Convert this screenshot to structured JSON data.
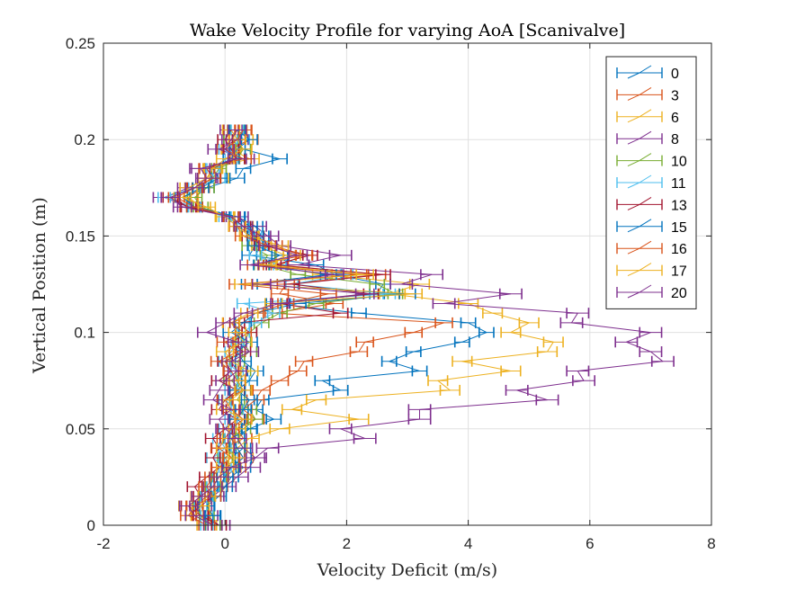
{
  "chart_data": {
    "type": "line",
    "title": "Wake Velocity Profile for varying AoA [Scanivalve]",
    "xlabel": "Velocity Deficit (m/s)",
    "ylabel": "Vertical Position (m)",
    "xlim": [
      -2,
      8
    ],
    "ylim": [
      0,
      0.25
    ],
    "xticks": [
      "-2",
      "0",
      "2",
      "4",
      "6",
      "8"
    ],
    "yticks": [
      "0",
      "0.05",
      "0.1",
      "0.15",
      "0.2",
      "0.25"
    ],
    "grid": true,
    "legend_position": "top-right",
    "error_bars": "horizontal",
    "y": [
      0.205,
      0.2,
      0.195,
      0.19,
      0.185,
      0.18,
      0.175,
      0.17,
      0.165,
      0.16,
      0.155,
      0.15,
      0.145,
      0.14,
      0.135,
      0.13,
      0.125,
      0.12,
      0.115,
      0.11,
      0.105,
      0.1,
      0.095,
      0.09,
      0.085,
      0.08,
      0.075,
      0.07,
      0.065,
      0.06,
      0.055,
      0.05,
      0.045,
      0.04,
      0.035,
      0.03,
      0.025,
      0.02,
      0.015,
      0.01,
      0.005,
      0.0
    ],
    "series": [
      {
        "name": "0",
        "color": "#0072BD",
        "err": 0.12,
        "x": [
          0.2,
          0.1,
          0.3,
          0.9,
          0.3,
          0.2,
          -0.3,
          -0.7,
          -0.5,
          0.2,
          0.5,
          0.6,
          0.5,
          0.4,
          1.5,
          1.8,
          2.6,
          2.5,
          0.8,
          2.2,
          4.0,
          4.3,
          3.9,
          3.1,
          2.7,
          3.2,
          1.6,
          1.9,
          0.6,
          0.5,
          0.8,
          0.4,
          0.2,
          0.3,
          0.1,
          0.3,
          0.1,
          0.0,
          -0.1,
          -0.3,
          -0.2,
          -0.2
        ]
      },
      {
        "name": "3",
        "color": "#D95319",
        "err": 0.14,
        "x": [
          0.3,
          0.4,
          0.1,
          0.2,
          -0.2,
          -0.3,
          -0.4,
          -0.6,
          -0.6,
          0.1,
          0.2,
          0.5,
          0.8,
          1.3,
          0.9,
          2.5,
          1.0,
          0.9,
          1.8,
          0.8,
          3.6,
          3.1,
          2.3,
          2.2,
          1.3,
          1.2,
          0.9,
          0.6,
          0.5,
          0.3,
          0.5,
          0.2,
          0.3,
          0.0,
          0.1,
          0.2,
          0.0,
          -0.1,
          -0.3,
          -0.5,
          -0.4,
          -0.2
        ]
      },
      {
        "name": "6",
        "color": "#EDB120",
        "err": 0.16,
        "x": [
          0.2,
          0.3,
          0.1,
          0.4,
          -0.2,
          -0.1,
          -0.5,
          -0.6,
          -0.4,
          0.0,
          0.3,
          0.4,
          0.6,
          1.0,
          0.7,
          1.6,
          3.2,
          2.7,
          4.0,
          4.4,
          5.0,
          4.7,
          5.4,
          5.3,
          3.9,
          4.7,
          3.5,
          3.7,
          1.5,
          1.1,
          2.2,
          0.9,
          0.4,
          0.2,
          0.3,
          0.1,
          -0.1,
          -0.2,
          -0.4,
          -0.6,
          -0.4,
          -0.3
        ]
      },
      {
        "name": "8",
        "color": "#7E2F8E",
        "err": 0.18,
        "x": [
          0.1,
          0.2,
          -0.1,
          0.3,
          -0.4,
          -0.3,
          -0.6,
          -1.0,
          -0.6,
          0.2,
          0.5,
          0.7,
          0.9,
          1.9,
          1.2,
          3.4,
          2.9,
          4.7,
          3.6,
          5.8,
          5.7,
          7.0,
          6.6,
          7.0,
          7.2,
          5.8,
          5.9,
          4.8,
          5.3,
          3.2,
          3.2,
          1.9,
          2.3,
          0.7,
          0.5,
          0.4,
          0.2,
          0.0,
          -0.2,
          -0.4,
          -0.3,
          -0.1
        ]
      },
      {
        "name": "10",
        "color": "#77AC30",
        "err": 0.12,
        "x": [
          0.2,
          0.1,
          0.3,
          0.2,
          -0.1,
          -0.2,
          -0.3,
          -0.5,
          -0.4,
          0.1,
          0.3,
          0.4,
          0.4,
          0.7,
          0.6,
          1.2,
          2.5,
          2.8,
          1.5,
          0.9,
          0.6,
          0.4,
          0.3,
          0.4,
          0.2,
          0.3,
          0.1,
          0.3,
          0.2,
          0.4,
          0.5,
          0.3,
          0.1,
          0.2,
          0.0,
          0.1,
          -0.1,
          -0.2,
          -0.3,
          -0.4,
          -0.3,
          -0.2
        ]
      },
      {
        "name": "11",
        "color": "#4DBEEE",
        "err": 0.1,
        "x": [
          0.2,
          0.3,
          0.0,
          0.1,
          -0.2,
          -0.1,
          -0.5,
          -1.0,
          -0.5,
          0.0,
          0.3,
          0.5,
          0.6,
          0.5,
          0.9,
          2.0,
          1.1,
          2.7,
          0.3,
          0.8,
          0.5,
          0.3,
          0.2,
          0.1,
          0.0,
          0.2,
          0.3,
          0.1,
          0.0,
          0.2,
          0.1,
          0.0,
          -0.1,
          0.0,
          -0.2,
          0.0,
          -0.1,
          -0.2,
          -0.3,
          -0.4,
          -0.3,
          -0.3
        ]
      },
      {
        "name": "13",
        "color": "#A2142F",
        "err": 0.12,
        "x": [
          0.1,
          0.0,
          0.1,
          0.2,
          -0.3,
          -0.2,
          -0.5,
          -0.9,
          -0.6,
          0.1,
          0.3,
          0.4,
          0.6,
          1.4,
          0.8,
          2.6,
          1.1,
          2.4,
          0.9,
          1.9,
          0.2,
          0.4,
          0.1,
          0.3,
          0.0,
          0.1,
          -0.1,
          0.2,
          0.0,
          -0.1,
          0.2,
          0.0,
          -0.2,
          -0.1,
          -0.2,
          -0.1,
          -0.3,
          -0.5,
          -0.4,
          -0.6,
          -0.4,
          -0.1
        ]
      },
      {
        "name": "15",
        "color": "#0072BD",
        "err": 0.13,
        "x": [
          0.2,
          0.4,
          0.2,
          0.1,
          -0.2,
          -0.1,
          -0.4,
          -0.7,
          -0.5,
          0.2,
          0.4,
          0.5,
          0.5,
          0.9,
          0.6,
          1.7,
          0.4,
          3.0,
          1.2,
          0.5,
          0.3,
          0.1,
          0.4,
          0.2,
          0.3,
          0.5,
          0.4,
          0.2,
          0.4,
          0.3,
          0.2,
          0.4,
          0.1,
          0.2,
          0.3,
          0.1,
          0.0,
          -0.1,
          -0.2,
          -0.3,
          -0.2,
          -0.2
        ]
      },
      {
        "name": "16",
        "color": "#D95319",
        "err": 0.13,
        "x": [
          0.3,
          0.2,
          0.0,
          0.3,
          -0.3,
          -0.2,
          -0.5,
          -0.8,
          -0.5,
          0.1,
          0.2,
          0.3,
          0.7,
          1.3,
          0.5,
          2.2,
          0.2,
          1.7,
          1.0,
          0.5,
          0.1,
          0.3,
          0.0,
          0.2,
          -0.1,
          0.1,
          0.2,
          0.3,
          0.0,
          0.1,
          0.3,
          0.1,
          0.0,
          -0.1,
          0.1,
          -0.1,
          -0.2,
          -0.3,
          -0.2,
          -0.5,
          -0.6,
          -0.3
        ]
      },
      {
        "name": "17",
        "color": "#EDB120",
        "err": 0.14,
        "x": [
          0.1,
          0.2,
          0.3,
          0.0,
          -0.2,
          -0.3,
          -0.6,
          -0.7,
          -0.3,
          0.0,
          0.2,
          0.4,
          0.9,
          1.1,
          0.7,
          2.3,
          0.3,
          3.1,
          0.8,
          0.4,
          0.1,
          0.2,
          0.3,
          0.0,
          0.1,
          0.4,
          0.2,
          0.3,
          0.1,
          0.0,
          0.3,
          0.2,
          0.1,
          0.0,
          0.2,
          0.0,
          -0.1,
          -0.2,
          -0.3,
          -0.4,
          -0.5,
          -0.2
        ]
      },
      {
        "name": "20",
        "color": "#7E2F8E",
        "err": 0.15,
        "x": [
          0.2,
          0.1,
          0.0,
          0.2,
          -0.4,
          -0.3,
          -0.5,
          -0.9,
          -0.7,
          0.1,
          0.3,
          0.6,
          0.7,
          1.2,
          0.4,
          1.8,
          0.6,
          2.3,
          0.9,
          0.3,
          0.0,
          -0.3,
          0.2,
          0.4,
          0.1,
          0.2,
          0.0,
          -0.1,
          -0.2,
          0.1,
          -0.1,
          0.0,
          0.2,
          0.3,
          0.5,
          0.1,
          -0.1,
          -0.2,
          -0.4,
          -0.6,
          -0.5,
          -0.2
        ]
      }
    ]
  }
}
